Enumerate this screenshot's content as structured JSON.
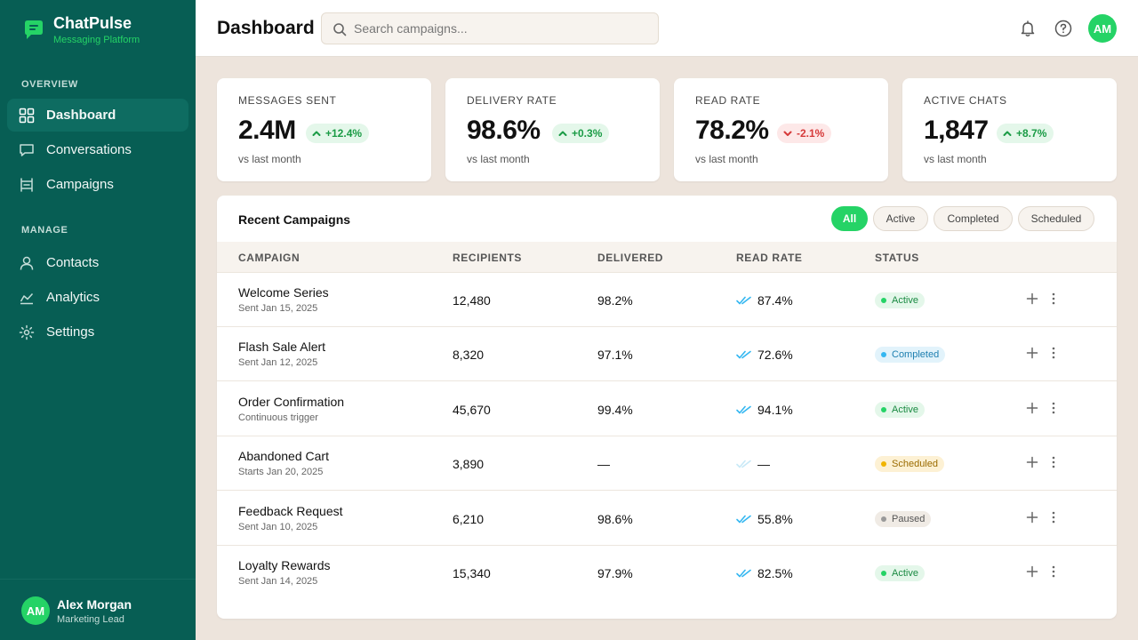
{
  "app": {
    "name": "ChatPulse",
    "tagline": "Messaging Platform"
  },
  "sidebar": {
    "sections": [
      {
        "label": "OVERVIEW",
        "items": [
          {
            "label": "Dashboard",
            "icon": "grid-icon",
            "active": true
          },
          {
            "label": "Conversations",
            "icon": "chat-icon",
            "active": false
          },
          {
            "label": "Campaigns",
            "icon": "campaign-icon",
            "active": false
          }
        ]
      },
      {
        "label": "MANAGE",
        "items": [
          {
            "label": "Contacts",
            "icon": "user-icon",
            "active": false
          },
          {
            "label": "Analytics",
            "icon": "chart-icon",
            "active": false
          },
          {
            "label": "Settings",
            "icon": "gear-icon",
            "active": false
          }
        ]
      }
    ],
    "user": {
      "initials": "AM",
      "name": "Alex Morgan",
      "role": "Marketing Lead"
    }
  },
  "header": {
    "title": "Dashboard",
    "search_placeholder": "Search campaigns...",
    "icons": [
      "bell-icon",
      "help-icon"
    ],
    "avatar_initials": "AM"
  },
  "stats": [
    {
      "label": "MESSAGES SENT",
      "value": "2.4M",
      "delta": "+12.4%",
      "trend": "up",
      "sub": "vs last month"
    },
    {
      "label": "DELIVERY RATE",
      "value": "98.6%",
      "delta": "+0.3%",
      "trend": "up",
      "sub": "vs last month"
    },
    {
      "label": "READ RATE",
      "value": "78.2%",
      "delta": "-2.1%",
      "trend": "down",
      "sub": "vs last month"
    },
    {
      "label": "ACTIVE CHATS",
      "value": "1,847",
      "delta": "+8.7%",
      "trend": "up",
      "sub": "vs last month"
    }
  ],
  "campaigns": {
    "title": "Recent Campaigns",
    "filters": [
      {
        "label": "All",
        "active": true
      },
      {
        "label": "Active",
        "active": false
      },
      {
        "label": "Completed",
        "active": false
      },
      {
        "label": "Scheduled",
        "active": false
      }
    ],
    "columns": [
      "CAMPAIGN",
      "RECIPIENTS",
      "DELIVERED",
      "READ RATE",
      "STATUS"
    ],
    "rows": [
      {
        "name": "Welcome Series",
        "sub": "Sent Jan 15, 2025",
        "recipients": "12,480",
        "delivered": "98.2%",
        "read_rate": "87.4%",
        "status": "Active"
      },
      {
        "name": "Flash Sale Alert",
        "sub": "Sent Jan 12, 2025",
        "recipients": "8,320",
        "delivered": "97.1%",
        "read_rate": "72.6%",
        "status": "Completed"
      },
      {
        "name": "Order Confirmation",
        "sub": "Continuous trigger",
        "recipients": "45,670",
        "delivered": "99.4%",
        "read_rate": "94.1%",
        "status": "Active"
      },
      {
        "name": "Abandoned Cart",
        "sub": "Starts Jan 20, 2025",
        "recipients": "3,890",
        "delivered": "—",
        "read_rate": "—",
        "status": "Scheduled"
      },
      {
        "name": "Feedback Request",
        "sub": "Sent Jan 10, 2025",
        "recipients": "6,210",
        "delivered": "98.6%",
        "read_rate": "55.8%",
        "status": "Paused"
      },
      {
        "name": "Loyalty Rewards",
        "sub": "Sent Jan 14, 2025",
        "recipients": "15,340",
        "delivered": "97.9%",
        "read_rate": "82.5%",
        "status": "Active"
      }
    ]
  },
  "colors": {
    "sidebar_bg": "#075e54",
    "accent": "#25d366",
    "read_check": "#34b7f1",
    "status": {
      "Active": {
        "bg": "#e4f7ea",
        "fg": "#1a8a42",
        "dot": "#25d366"
      },
      "Completed": {
        "bg": "#e2f3fb",
        "fg": "#1d7fb0",
        "dot": "#34b7f1"
      },
      "Scheduled": {
        "bg": "#fdf1d4",
        "fg": "#9a6b00",
        "dot": "#f0b400"
      },
      "Paused": {
        "bg": "#f0ebe5",
        "fg": "#555555",
        "dot": "#999999"
      }
    }
  }
}
